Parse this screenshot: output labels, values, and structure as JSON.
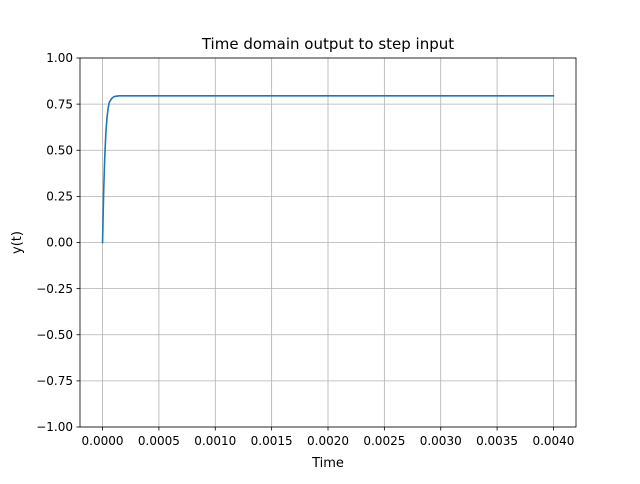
{
  "chart_data": {
    "type": "line",
    "title": "Time domain output to step input",
    "xlabel": "Time",
    "ylabel": "y(t)",
    "xlim": [
      -0.0002,
      0.0042
    ],
    "ylim": [
      -1.0,
      1.0
    ],
    "xticks": [
      0.0,
      0.0005,
      0.001,
      0.0015,
      0.002,
      0.0025,
      0.003,
      0.0035,
      0.004
    ],
    "xtick_labels": [
      "0.0000",
      "0.0005",
      "0.0010",
      "0.0015",
      "0.0020",
      "0.0025",
      "0.0030",
      "0.0035",
      "0.0040"
    ],
    "yticks": [
      -1.0,
      -0.75,
      -0.5,
      -0.25,
      0.0,
      0.25,
      0.5,
      0.75,
      1.0
    ],
    "ytick_labels": [
      "−1.00",
      "−0.75",
      "−0.50",
      "−0.25",
      "0.00",
      "0.25",
      "0.50",
      "0.75",
      "1.00"
    ],
    "grid": true,
    "series": [
      {
        "color": "#1f77b4",
        "x": [
          0.0,
          1e-05,
          2e-05,
          3e-05,
          4e-05,
          5e-05,
          6e-05,
          8e-05,
          0.0001,
          0.00012,
          0.00015,
          0.0002,
          0.0003,
          0.0005,
          0.001,
          0.002,
          0.003,
          0.004
        ],
        "y": [
          0.0,
          0.28,
          0.47,
          0.6,
          0.68,
          0.73,
          0.76,
          0.78,
          0.79,
          0.793,
          0.795,
          0.795,
          0.795,
          0.795,
          0.795,
          0.795,
          0.795,
          0.795
        ]
      }
    ]
  }
}
